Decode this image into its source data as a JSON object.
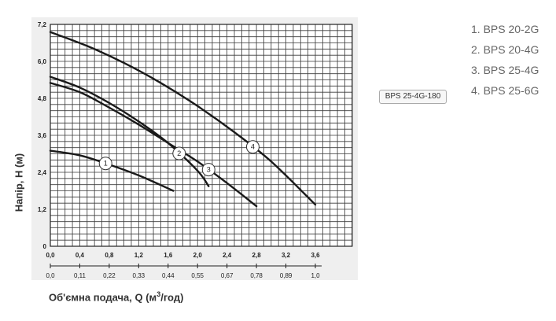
{
  "chart_data": {
    "type": "line",
    "title": "",
    "xlabel": "Об'ємна подача, Q (м",
    "xlabel_sup": "3",
    "xlabel_tail": "/год)",
    "ylabel": "Напір, Н (м)",
    "xlim": [
      0,
      4.1
    ],
    "ylim": [
      0,
      7.2
    ],
    "grid": true,
    "x_ticks": [
      "0,0",
      "0,4",
      "0,8",
      "1,2",
      "1,6",
      "2,0",
      "2,4",
      "2,8",
      "3,2",
      "3,6"
    ],
    "x_ticks_secondary": [
      "0,0",
      "0,11",
      "0,22",
      "0,33",
      "0,44",
      "0,55",
      "0,67",
      "0,78",
      "0,89",
      "1,0"
    ],
    "y_ticks": [
      "0",
      "1,2",
      "2,4",
      "3,6",
      "4,8",
      "6,0",
      "7,2"
    ],
    "series": [
      {
        "name": "1",
        "x": [
          0.0,
          0.4,
          0.8,
          1.2,
          1.67
        ],
        "y": [
          3.1,
          2.95,
          2.65,
          2.3,
          1.8
        ]
      },
      {
        "name": "2",
        "x": [
          0.0,
          0.4,
          0.8,
          1.2,
          1.6,
          2.0,
          2.15
        ],
        "y": [
          5.5,
          5.15,
          4.65,
          4.05,
          3.35,
          2.45,
          1.95
        ]
      },
      {
        "name": "3",
        "x": [
          0.0,
          0.4,
          0.8,
          1.2,
          1.6,
          2.0,
          2.4,
          2.8
        ],
        "y": [
          5.3,
          5.0,
          4.5,
          3.95,
          3.35,
          2.75,
          2.05,
          1.3
        ]
      },
      {
        "name": "4",
        "x": [
          0.0,
          0.5,
          1.0,
          1.5,
          2.0,
          2.5,
          3.0,
          3.6
        ],
        "y": [
          6.95,
          6.5,
          5.95,
          5.3,
          4.55,
          3.7,
          2.75,
          1.35
        ]
      }
    ],
    "markers": [
      "1",
      "2",
      "3",
      "4"
    ]
  },
  "model_tag": "BPS 25-4G-180",
  "legend": [
    "1. BPS 20-2G",
    "2. BPS 20-4G",
    "3. BPS 25-4G",
    "4. BPS 25-6G"
  ],
  "colors": {
    "curve": "#1a1a1a",
    "grid": "#3a3a3a",
    "panel": "#efefef"
  }
}
